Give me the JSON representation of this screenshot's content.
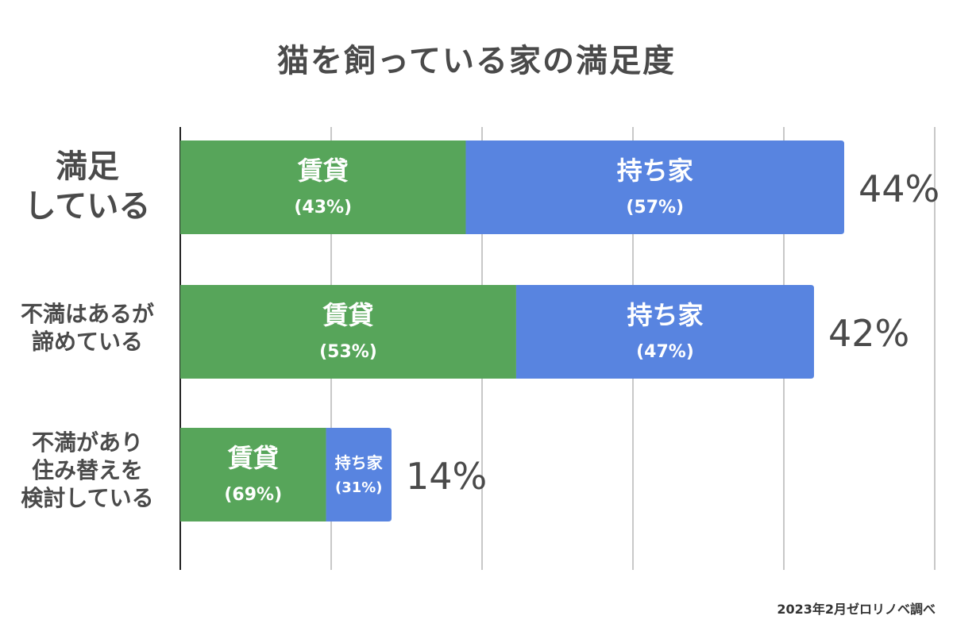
{
  "title": "猫を飼っている家の満足度",
  "source": "2023年2月ゼロリノベ調べ",
  "colors": {
    "rental": "#57a55a",
    "owned": "#5884e0",
    "grid": "#c8c8c8",
    "axis": "#222222",
    "segment_text": "#ffffff",
    "total_text": "#4a4a4a"
  },
  "chart_data": {
    "type": "bar",
    "orientation": "horizontal",
    "stacked": true,
    "xlim": [
      0,
      50
    ],
    "grid": true,
    "categories": [
      "満足\nしている",
      "不満はあるが\n諦めている",
      "不満があり\n住み替えを\n検討している"
    ],
    "totals": [
      44,
      42,
      14
    ],
    "total_labels": [
      "44%",
      "42%",
      "14%"
    ],
    "series": [
      {
        "name": "賃貸",
        "share_labels": [
          "(43%)",
          "(53%)",
          "(69%)"
        ],
        "values": [
          18.92,
          22.26,
          9.66
        ]
      },
      {
        "name": "持ち家",
        "share_labels": [
          "(57%)",
          "(47%)",
          "(31%)"
        ],
        "values": [
          25.08,
          19.74,
          4.34
        ]
      }
    ]
  }
}
